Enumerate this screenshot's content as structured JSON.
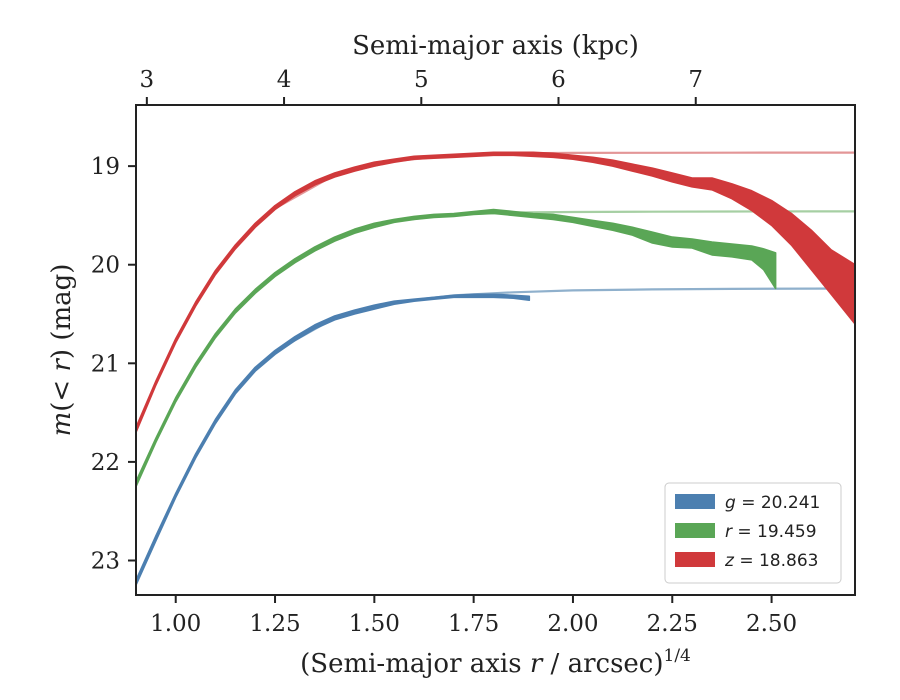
{
  "chart_data": {
    "type": "area",
    "xlabel_prefix": "(Semi-major axis ",
    "xlabel_var": "r",
    "xlabel_suffix": " / arcsec)",
    "xlabel_exp": "1/4",
    "x2label": "Semi-major axis (kpc)",
    "ylabel_pre": "m(< ",
    "ylabel_var": "r",
    "ylabel_post": ") (mag)",
    "xlim": [
      0.9,
      2.71
    ],
    "ylim": [
      23.35,
      18.38
    ],
    "y_inverted": true,
    "xticks": [
      1.0,
      1.25,
      1.5,
      1.75,
      2.0,
      2.25,
      2.5
    ],
    "xtick_labels": [
      "1.00",
      "1.25",
      "1.50",
      "1.75",
      "2.00",
      "2.25",
      "2.50"
    ],
    "yticks": [
      19,
      20,
      21,
      22,
      23
    ],
    "ytick_labels": [
      "19",
      "20",
      "21",
      "22",
      "23"
    ],
    "x2ticks_kpc": [
      3,
      4,
      5,
      6,
      7
    ],
    "x2tick_positions": [
      0.9273,
      1.2727,
      1.6182,
      1.9636,
      2.3091
    ],
    "x2tick_labels": [
      "3",
      "4",
      "5",
      "6",
      "7"
    ],
    "legend_loc": "lower-right",
    "series": [
      {
        "name": "g = 20.241",
        "band": "g",
        "total": "20.241",
        "color": "#4c7fb0",
        "model_color": "#8fb0cc",
        "asymptote": 20.241,
        "x": [
          0.9,
          0.95,
          1.0,
          1.05,
          1.1,
          1.15,
          1.2,
          1.25,
          1.3,
          1.35,
          1.4,
          1.45,
          1.5,
          1.55,
          1.6,
          1.65,
          1.7,
          1.75,
          1.8,
          1.85,
          1.89
        ],
        "low": [
          23.2,
          22.75,
          22.32,
          21.92,
          21.57,
          21.27,
          21.04,
          20.87,
          20.73,
          20.61,
          20.52,
          20.46,
          20.41,
          20.37,
          20.35,
          20.33,
          20.31,
          20.3,
          20.3,
          20.31,
          20.32
        ],
        "high": [
          23.25,
          22.8,
          22.36,
          21.96,
          21.61,
          21.31,
          21.08,
          20.91,
          20.77,
          20.65,
          20.56,
          20.5,
          20.45,
          20.4,
          20.37,
          20.35,
          20.33,
          20.33,
          20.33,
          20.34,
          20.36
        ],
        "model_x": [
          1.25,
          1.4,
          1.55,
          1.7,
          1.85,
          2.0,
          2.2,
          2.4,
          2.6,
          2.71
        ],
        "model_y": [
          20.88,
          20.54,
          20.38,
          20.31,
          20.28,
          20.26,
          20.25,
          20.245,
          20.242,
          20.241
        ]
      },
      {
        "name": "r = 19.459",
        "band": "r",
        "total": "19.459",
        "color": "#5aa656",
        "model_color": "#a6cfa3",
        "asymptote": 19.459,
        "x": [
          0.9,
          0.95,
          1.0,
          1.05,
          1.1,
          1.15,
          1.2,
          1.25,
          1.3,
          1.35,
          1.4,
          1.45,
          1.5,
          1.55,
          1.6,
          1.65,
          1.7,
          1.75,
          1.8,
          1.85,
          1.9,
          1.95,
          2.0,
          2.05,
          2.1,
          2.15,
          2.2,
          2.25,
          2.3,
          2.35,
          2.4,
          2.45,
          2.48,
          2.51
        ],
        "low": [
          22.2,
          21.76,
          21.35,
          21.0,
          20.7,
          20.45,
          20.25,
          20.08,
          19.94,
          19.82,
          19.72,
          19.64,
          19.58,
          19.54,
          19.51,
          19.49,
          19.48,
          19.46,
          19.44,
          19.46,
          19.48,
          19.49,
          19.52,
          19.55,
          19.58,
          19.62,
          19.67,
          19.72,
          19.74,
          19.77,
          19.79,
          19.81,
          19.84,
          19.88
        ],
        "high": [
          22.25,
          21.8,
          21.39,
          21.04,
          20.74,
          20.49,
          20.29,
          20.12,
          19.98,
          19.86,
          19.76,
          19.68,
          19.62,
          19.57,
          19.54,
          19.52,
          19.51,
          19.49,
          19.48,
          19.5,
          19.52,
          19.54,
          19.57,
          19.61,
          19.65,
          19.7,
          19.78,
          19.82,
          19.83,
          19.9,
          19.92,
          19.95,
          20.05,
          20.24
        ],
        "model_x": [
          1.25,
          1.4,
          1.55,
          1.7,
          1.85,
          2.0,
          2.2,
          2.4,
          2.6,
          2.71
        ],
        "model_y": [
          20.09,
          19.73,
          19.56,
          19.49,
          19.47,
          19.465,
          19.462,
          19.46,
          19.459,
          19.459
        ]
      },
      {
        "name": "z = 18.863",
        "band": "z",
        "total": "18.863",
        "color": "#d0393b",
        "model_color": "#e39697",
        "asymptote": 18.863,
        "x": [
          0.9,
          0.95,
          1.0,
          1.05,
          1.1,
          1.15,
          1.2,
          1.25,
          1.3,
          1.35,
          1.4,
          1.45,
          1.5,
          1.55,
          1.6,
          1.65,
          1.7,
          1.75,
          1.8,
          1.85,
          1.9,
          1.95,
          2.0,
          2.05,
          2.1,
          2.15,
          2.2,
          2.25,
          2.3,
          2.35,
          2.4,
          2.45,
          2.5,
          2.55,
          2.6,
          2.65,
          2.71
        ],
        "low": [
          21.65,
          21.18,
          20.75,
          20.38,
          20.06,
          19.8,
          19.58,
          19.4,
          19.26,
          19.15,
          19.07,
          19.01,
          18.96,
          18.93,
          18.9,
          18.89,
          18.88,
          18.87,
          18.86,
          18.86,
          18.86,
          18.87,
          18.89,
          18.91,
          18.94,
          18.98,
          19.02,
          19.07,
          19.12,
          19.12,
          19.18,
          19.25,
          19.35,
          19.48,
          19.65,
          19.85,
          20.0
        ],
        "high": [
          21.7,
          21.22,
          20.79,
          20.42,
          20.1,
          19.84,
          19.62,
          19.44,
          19.3,
          19.19,
          19.11,
          19.05,
          19.0,
          18.96,
          18.93,
          18.92,
          18.91,
          18.9,
          18.89,
          18.89,
          18.9,
          18.91,
          18.93,
          18.96,
          19.0,
          19.05,
          19.1,
          19.16,
          19.21,
          19.24,
          19.33,
          19.45,
          19.6,
          19.8,
          20.05,
          20.3,
          20.6
        ],
        "model_x": [
          1.25,
          1.4,
          1.55,
          1.7,
          1.85,
          2.0,
          2.2,
          2.4,
          2.6,
          2.71
        ],
        "model_y": [
          19.43,
          19.09,
          18.95,
          18.89,
          18.87,
          18.866,
          18.865,
          18.864,
          18.863,
          18.863
        ]
      }
    ]
  }
}
